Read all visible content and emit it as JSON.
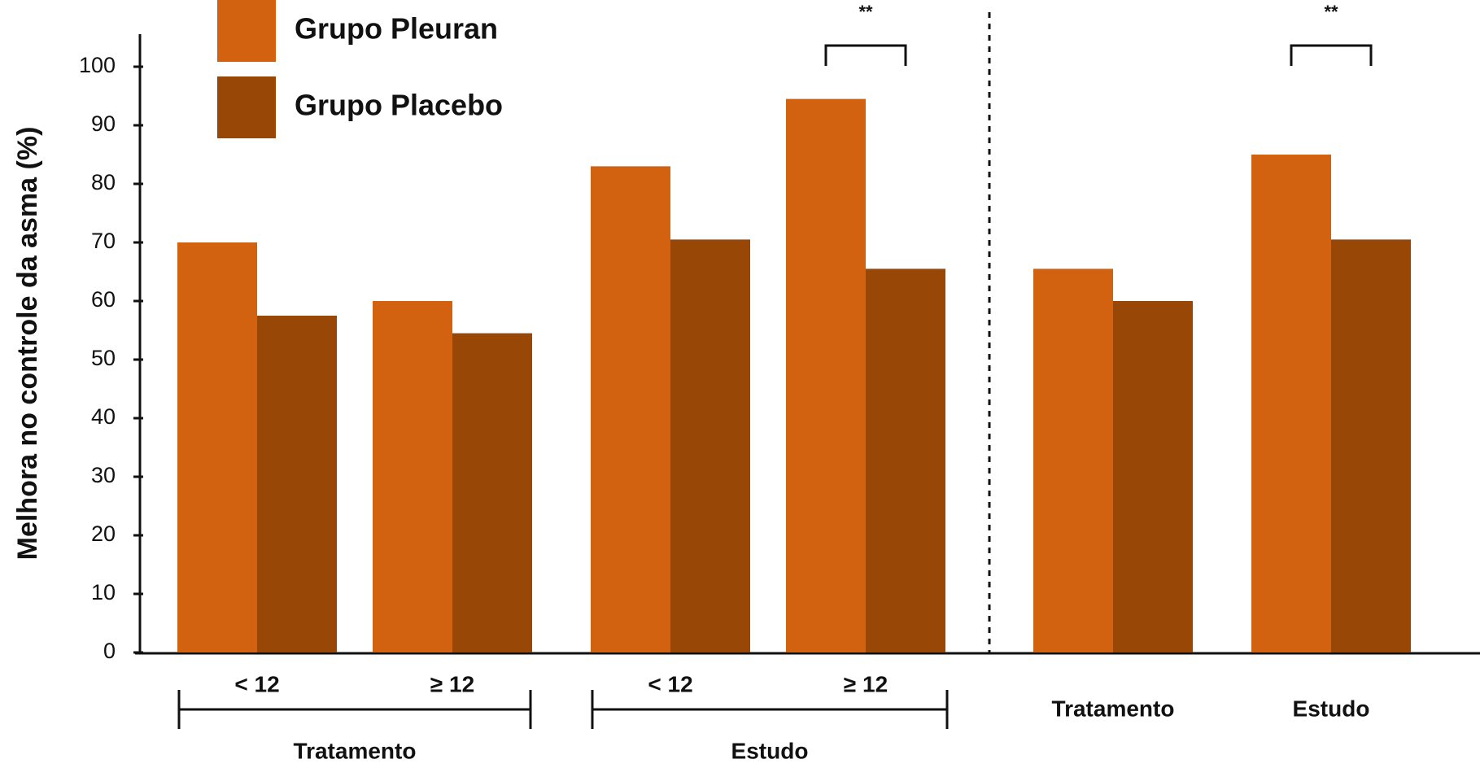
{
  "chart_data": {
    "type": "bar",
    "ylabel": "Melhora no controle da asma (%)",
    "ylim": [
      0,
      100
    ],
    "yticks": [
      0,
      10,
      20,
      30,
      40,
      50,
      60,
      70,
      80,
      90,
      100
    ],
    "colors": {
      "pleuran": "#D2620F",
      "placebo": "#984707"
    },
    "series": [
      {
        "name": "Grupo Pleuran",
        "values": [
          70,
          60,
          83,
          94.5,
          65.5,
          85
        ]
      },
      {
        "name": "Grupo Placebo",
        "values": [
          57.5,
          54.5,
          70.5,
          65.5,
          60,
          70.5
        ]
      }
    ],
    "categories": [
      "< 12",
      "≥ 12",
      "< 12",
      "≥ 12",
      "Tratamento",
      "Estudo"
    ],
    "group_labels": [
      "Tratamento",
      "Estudo"
    ],
    "significance": [
      {
        "category_index": 3,
        "label": "**"
      },
      {
        "category_index": 5,
        "label": "**"
      }
    ],
    "legend_position": "top-left",
    "grid": false
  }
}
